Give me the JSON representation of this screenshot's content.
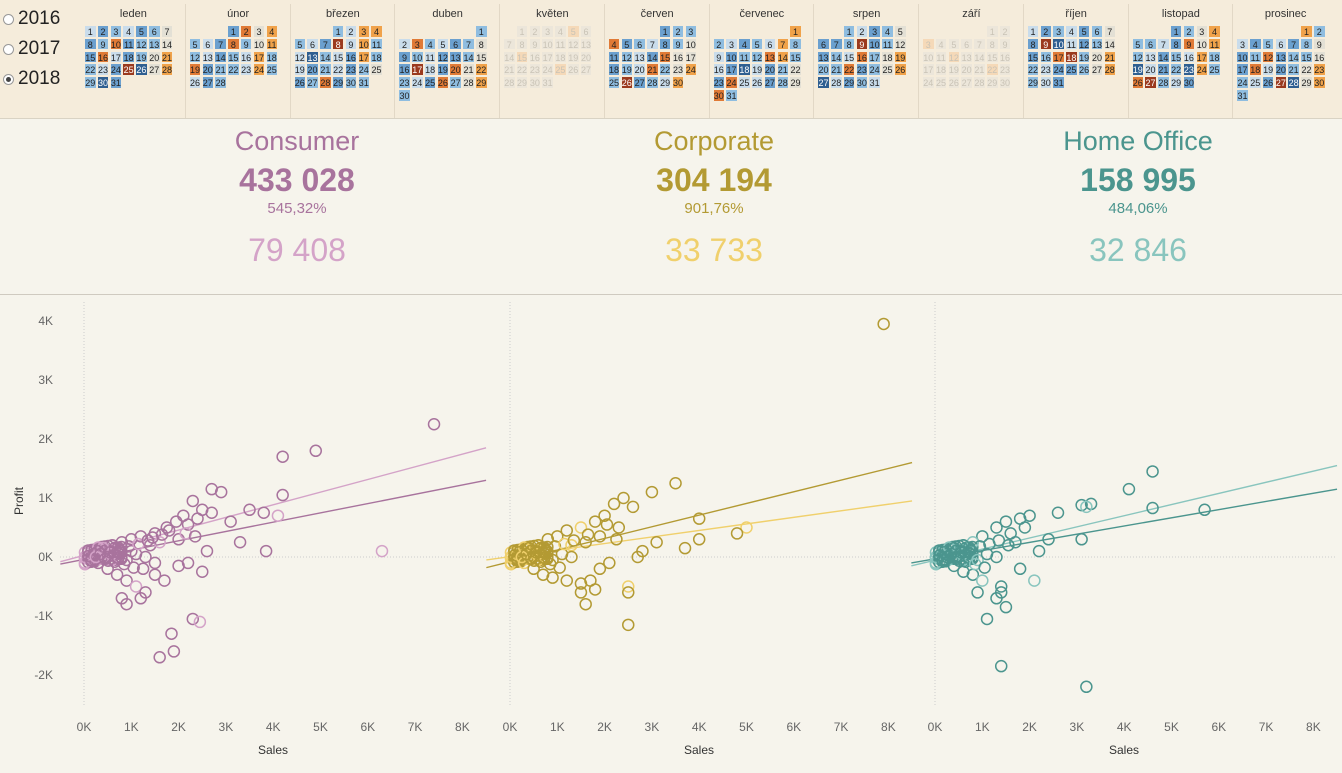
{
  "years": [
    {
      "label": "2016",
      "selected": false
    },
    {
      "label": "2017",
      "selected": false
    },
    {
      "label": "2018",
      "selected": true
    }
  ],
  "calendar": {
    "months": [
      "leden",
      "únor",
      "březen",
      "duben",
      "květen",
      "červen",
      "červenec",
      "srpen",
      "září",
      "říjen",
      "listopad",
      "prosinec"
    ],
    "start_dow": [
      0,
      3,
      3,
      6,
      1,
      4,
      6,
      2,
      5,
      0,
      3,
      5
    ],
    "days": [
      31,
      28,
      31,
      30,
      31,
      30,
      31,
      31,
      30,
      31,
      30,
      31
    ],
    "active": [
      true,
      true,
      true,
      true,
      false,
      true,
      true,
      true,
      false,
      true,
      true,
      true
    ]
  },
  "kpis": [
    {
      "name": "Consumer",
      "sales": "433 028",
      "pct": "545,32%",
      "profit": "79 408",
      "color": "#a8739d",
      "light": "#d4a3c8"
    },
    {
      "name": "Corporate",
      "sales": "304 194",
      "pct": "901,76%",
      "profit": "33 733",
      "color": "#b39a33",
      "light": "#f0d06c"
    },
    {
      "name": "Home Office",
      "sales": "158 995",
      "pct": "484,06%",
      "profit": "32 846",
      "color": "#4b958e",
      "light": "#89c5be"
    }
  ],
  "chart_data": [
    {
      "type": "scatter",
      "segment": "Consumer",
      "color": "#a8739d",
      "light": "#d4a3c8",
      "xlabel": "Sales",
      "ylabel": "Profit",
      "xlim": [
        0,
        8500
      ],
      "ylim": [
        -2500,
        4500
      ],
      "xticks": [
        "0K",
        "1K",
        "2K",
        "3K",
        "4K",
        "5K",
        "6K",
        "7K",
        "8K"
      ],
      "yticks": [
        "4K",
        "3K",
        "2K",
        "1K",
        "0K",
        "-1K",
        "-2K"
      ],
      "trend_dark": [
        [
          -500,
          -120
        ],
        [
          8500,
          1300
        ]
      ],
      "trend_light": [
        [
          -500,
          -80
        ],
        [
          8500,
          1850
        ]
      ],
      "points": [
        [
          7400,
          2250
        ],
        [
          4200,
          1700
        ],
        [
          4900,
          1800
        ],
        [
          4200,
          1050
        ],
        [
          6300,
          100
        ],
        [
          3850,
          100
        ],
        [
          2700,
          1150
        ],
        [
          2900,
          1100
        ],
        [
          2300,
          950
        ],
        [
          2500,
          800
        ],
        [
          2700,
          750
        ],
        [
          3500,
          800
        ],
        [
          3800,
          750
        ],
        [
          4100,
          700
        ],
        [
          3100,
          600
        ],
        [
          2200,
          550
        ],
        [
          1800,
          450
        ],
        [
          1500,
          400
        ],
        [
          1200,
          350
        ],
        [
          1000,
          300
        ],
        [
          800,
          250
        ],
        [
          600,
          200
        ],
        [
          400,
          150
        ],
        [
          300,
          100
        ],
        [
          200,
          50
        ],
        [
          100,
          20
        ],
        [
          150,
          -50
        ],
        [
          300,
          -100
        ],
        [
          500,
          -200
        ],
        [
          700,
          -300
        ],
        [
          900,
          -400
        ],
        [
          1100,
          -500
        ],
        [
          1300,
          -600
        ],
        [
          800,
          -700
        ],
        [
          900,
          -800
        ],
        [
          1200,
          -700
        ],
        [
          1600,
          -1700
        ],
        [
          1900,
          -1600
        ],
        [
          1850,
          -1300
        ],
        [
          2300,
          -1050
        ],
        [
          2450,
          -1100
        ],
        [
          2500,
          -250
        ],
        [
          1500,
          -300
        ],
        [
          1700,
          -400
        ],
        [
          2000,
          -150
        ],
        [
          2200,
          -100
        ],
        [
          2600,
          100
        ],
        [
          1000,
          100
        ],
        [
          1400,
          200
        ],
        [
          1600,
          250
        ],
        [
          2000,
          300
        ],
        [
          3300,
          250
        ],
        [
          500,
          0
        ],
        [
          700,
          80
        ],
        [
          900,
          -50
        ],
        [
          1100,
          50
        ],
        [
          1300,
          0
        ],
        [
          1500,
          -100
        ],
        [
          250,
          0
        ],
        [
          350,
          50
        ],
        [
          450,
          -30
        ],
        [
          550,
          80
        ],
        [
          650,
          -80
        ],
        [
          750,
          120
        ],
        [
          850,
          -120
        ],
        [
          950,
          180
        ],
        [
          1050,
          -180
        ],
        [
          1150,
          220
        ],
        [
          1250,
          -200
        ],
        [
          1350,
          280
        ],
        [
          1450,
          330
        ],
        [
          1650,
          380
        ],
        [
          1750,
          500
        ],
        [
          1950,
          600
        ],
        [
          2100,
          700
        ],
        [
          2400,
          650
        ],
        [
          2150,
          400
        ],
        [
          2350,
          350
        ]
      ]
    },
    {
      "type": "scatter",
      "segment": "Corporate",
      "color": "#b39a33",
      "light": "#f0d06c",
      "xlabel": "Sales",
      "ylabel": "Profit",
      "xlim": [
        0,
        8500
      ],
      "ylim": [
        -2500,
        4500
      ],
      "xticks": [
        "0K",
        "1K",
        "2K",
        "3K",
        "4K",
        "5K",
        "6K",
        "7K",
        "8K"
      ],
      "yticks": [],
      "trend_dark": [
        [
          -500,
          -180
        ],
        [
          8500,
          1600
        ]
      ],
      "trend_light": [
        [
          -500,
          -50
        ],
        [
          8500,
          950
        ]
      ],
      "points": [
        [
          7900,
          3950
        ],
        [
          3500,
          1250
        ],
        [
          3000,
          1100
        ],
        [
          4000,
          650
        ],
        [
          5000,
          500
        ],
        [
          4800,
          400
        ],
        [
          4000,
          300
        ],
        [
          3700,
          150
        ],
        [
          2400,
          1000
        ],
        [
          2600,
          850
        ],
        [
          2200,
          900
        ],
        [
          2000,
          700
        ],
        [
          1800,
          600
        ],
        [
          1500,
          500
        ],
        [
          1200,
          450
        ],
        [
          1000,
          350
        ],
        [
          800,
          300
        ],
        [
          600,
          200
        ],
        [
          400,
          150
        ],
        [
          200,
          80
        ],
        [
          100,
          30
        ],
        [
          150,
          -30
        ],
        [
          300,
          -100
        ],
        [
          500,
          -200
        ],
        [
          700,
          -300
        ],
        [
          900,
          -350
        ],
        [
          1200,
          -400
        ],
        [
          1500,
          -450
        ],
        [
          1500,
          -600
        ],
        [
          1600,
          -800
        ],
        [
          1700,
          -400
        ],
        [
          2500,
          -500
        ],
        [
          2500,
          -600
        ],
        [
          2500,
          -1150
        ],
        [
          1800,
          -550
        ],
        [
          1900,
          -200
        ],
        [
          2100,
          -100
        ],
        [
          2700,
          0
        ],
        [
          2800,
          100
        ],
        [
          3100,
          250
        ],
        [
          1300,
          200
        ],
        [
          1600,
          250
        ],
        [
          1900,
          350
        ],
        [
          2300,
          500
        ],
        [
          500,
          0
        ],
        [
          700,
          80
        ],
        [
          900,
          -50
        ],
        [
          1100,
          50
        ],
        [
          1300,
          0
        ],
        [
          250,
          0
        ],
        [
          350,
          50
        ],
        [
          450,
          -30
        ],
        [
          550,
          80
        ],
        [
          650,
          -80
        ],
        [
          750,
          120
        ],
        [
          850,
          -120
        ],
        [
          950,
          180
        ],
        [
          1050,
          -180
        ],
        [
          1150,
          220
        ],
        [
          1350,
          280
        ],
        [
          1650,
          380
        ],
        [
          2050,
          550
        ],
        [
          2250,
          300
        ]
      ]
    },
    {
      "type": "scatter",
      "segment": "Home Office",
      "color": "#4b958e",
      "light": "#89c5be",
      "xlabel": "Sales",
      "ylabel": "Profit",
      "xlim": [
        0,
        8500
      ],
      "ylim": [
        -2500,
        4500
      ],
      "xticks": [
        "0K",
        "1K",
        "2K",
        "3K",
        "4K",
        "5K",
        "6K",
        "7K",
        "8K"
      ],
      "yticks": [],
      "trend_dark": [
        [
          -500,
          -100
        ],
        [
          8500,
          1150
        ]
      ],
      "trend_light": [
        [
          -500,
          -150
        ],
        [
          8500,
          1550
        ]
      ],
      "points": [
        [
          4600,
          1450
        ],
        [
          4100,
          1150
        ],
        [
          3300,
          900
        ],
        [
          3100,
          880
        ],
        [
          3200,
          850
        ],
        [
          4600,
          830
        ],
        [
          5700,
          800
        ],
        [
          2600,
          750
        ],
        [
          2000,
          700
        ],
        [
          1800,
          650
        ],
        [
          1500,
          600
        ],
        [
          1300,
          500
        ],
        [
          1000,
          350
        ],
        [
          800,
          250
        ],
        [
          600,
          200
        ],
        [
          400,
          150
        ],
        [
          200,
          80
        ],
        [
          100,
          30
        ],
        [
          200,
          -50
        ],
        [
          400,
          -150
        ],
        [
          600,
          -250
        ],
        [
          800,
          -300
        ],
        [
          1000,
          -400
        ],
        [
          1400,
          -500
        ],
        [
          1400,
          -600
        ],
        [
          1300,
          -700
        ],
        [
          1500,
          -850
        ],
        [
          1100,
          -1050
        ],
        [
          1400,
          -1850
        ],
        [
          3200,
          -2200
        ],
        [
          900,
          -600
        ],
        [
          2100,
          -400
        ],
        [
          1800,
          -200
        ],
        [
          2200,
          100
        ],
        [
          2400,
          300
        ],
        [
          1600,
          400
        ],
        [
          1700,
          250
        ],
        [
          3100,
          300
        ],
        [
          500,
          0
        ],
        [
          700,
          80
        ],
        [
          900,
          -50
        ],
        [
          1100,
          50
        ],
        [
          1300,
          0
        ],
        [
          250,
          0
        ],
        [
          350,
          50
        ],
        [
          450,
          -30
        ],
        [
          550,
          80
        ],
        [
          650,
          -80
        ],
        [
          750,
          120
        ],
        [
          850,
          -120
        ],
        [
          950,
          180
        ],
        [
          1050,
          -180
        ],
        [
          1150,
          220
        ],
        [
          1350,
          280
        ],
        [
          1550,
          200
        ],
        [
          1900,
          500
        ]
      ]
    }
  ]
}
